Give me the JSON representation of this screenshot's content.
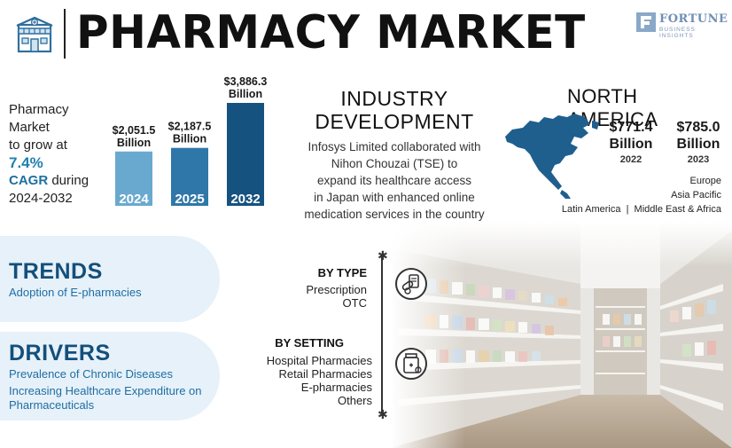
{
  "header": {
    "title": "PHARMACY MARKET",
    "brand_name": "FORTUNE",
    "brand_sub": "BUSINESS INSIGHTS"
  },
  "growth": {
    "line1": "Pharmacy",
    "line2": "Market",
    "line3": "to grow at",
    "rate": "7.4%",
    "cagr": "CAGR",
    "during": " during",
    "period": "2024-2032"
  },
  "chart_data": {
    "type": "bar",
    "categories": [
      "2024",
      "2025",
      "2032"
    ],
    "values": [
      2051.5,
      2187.5,
      3886.3
    ],
    "value_labels": [
      "$2,051.5\nBillion",
      "$2,187.5\nBillion",
      "$3,886.3\nBillion"
    ],
    "colors": [
      "#6aa9cf",
      "#2f77a8",
      "#15527f"
    ],
    "title": "",
    "xlabel": "",
    "ylabel": "",
    "ylim": [
      0,
      3886.3
    ],
    "grid": false,
    "legend": "none"
  },
  "industry": {
    "title_line1": "INDUSTRY",
    "title_line2": "DEVELOPMENT",
    "lines": [
      "Infosys Limited collaborated with",
      "Nihon Chouzai (TSE) to",
      "expand its healthcare access",
      "in Japan with enhanced online",
      "medication services in the country"
    ]
  },
  "north_america": {
    "title": "NORTH AMERICA",
    "values": [
      {
        "value": "$771.4",
        "unit": "Billion",
        "year": "2022"
      },
      {
        "value": "$785.0",
        "unit": "Billion",
        "year": "2023"
      }
    ],
    "regions": {
      "r1": "Europe",
      "r2": "Asia Pacific",
      "r3": "Latin America  |  Middle East & Africa"
    },
    "map_color": "#1f5f8e"
  },
  "trends": {
    "title": "TRENDS",
    "items": [
      "Adoption of E-pharmacies"
    ]
  },
  "drivers": {
    "title": "DRIVERS",
    "items": [
      "Prevalence of Chronic Diseases",
      "Increasing Healthcare Expenditure on Pharmaceuticals"
    ]
  },
  "segmentation": {
    "by_type": {
      "title": "BY TYPE",
      "items": [
        "Prescription",
        "OTC"
      ],
      "icon": "pills-prescription-icon"
    },
    "by_setting": {
      "title": "BY SETTING",
      "items": [
        "Hospital Pharmacies",
        "Retail Pharmacies",
        "E-pharmacies",
        "Others"
      ],
      "icon": "medicine-bottle-icon"
    }
  },
  "colors": {
    "accent": "#1e7fb0",
    "dark_blue": "#144f7a",
    "pill_bg": "#e7f1f9"
  }
}
